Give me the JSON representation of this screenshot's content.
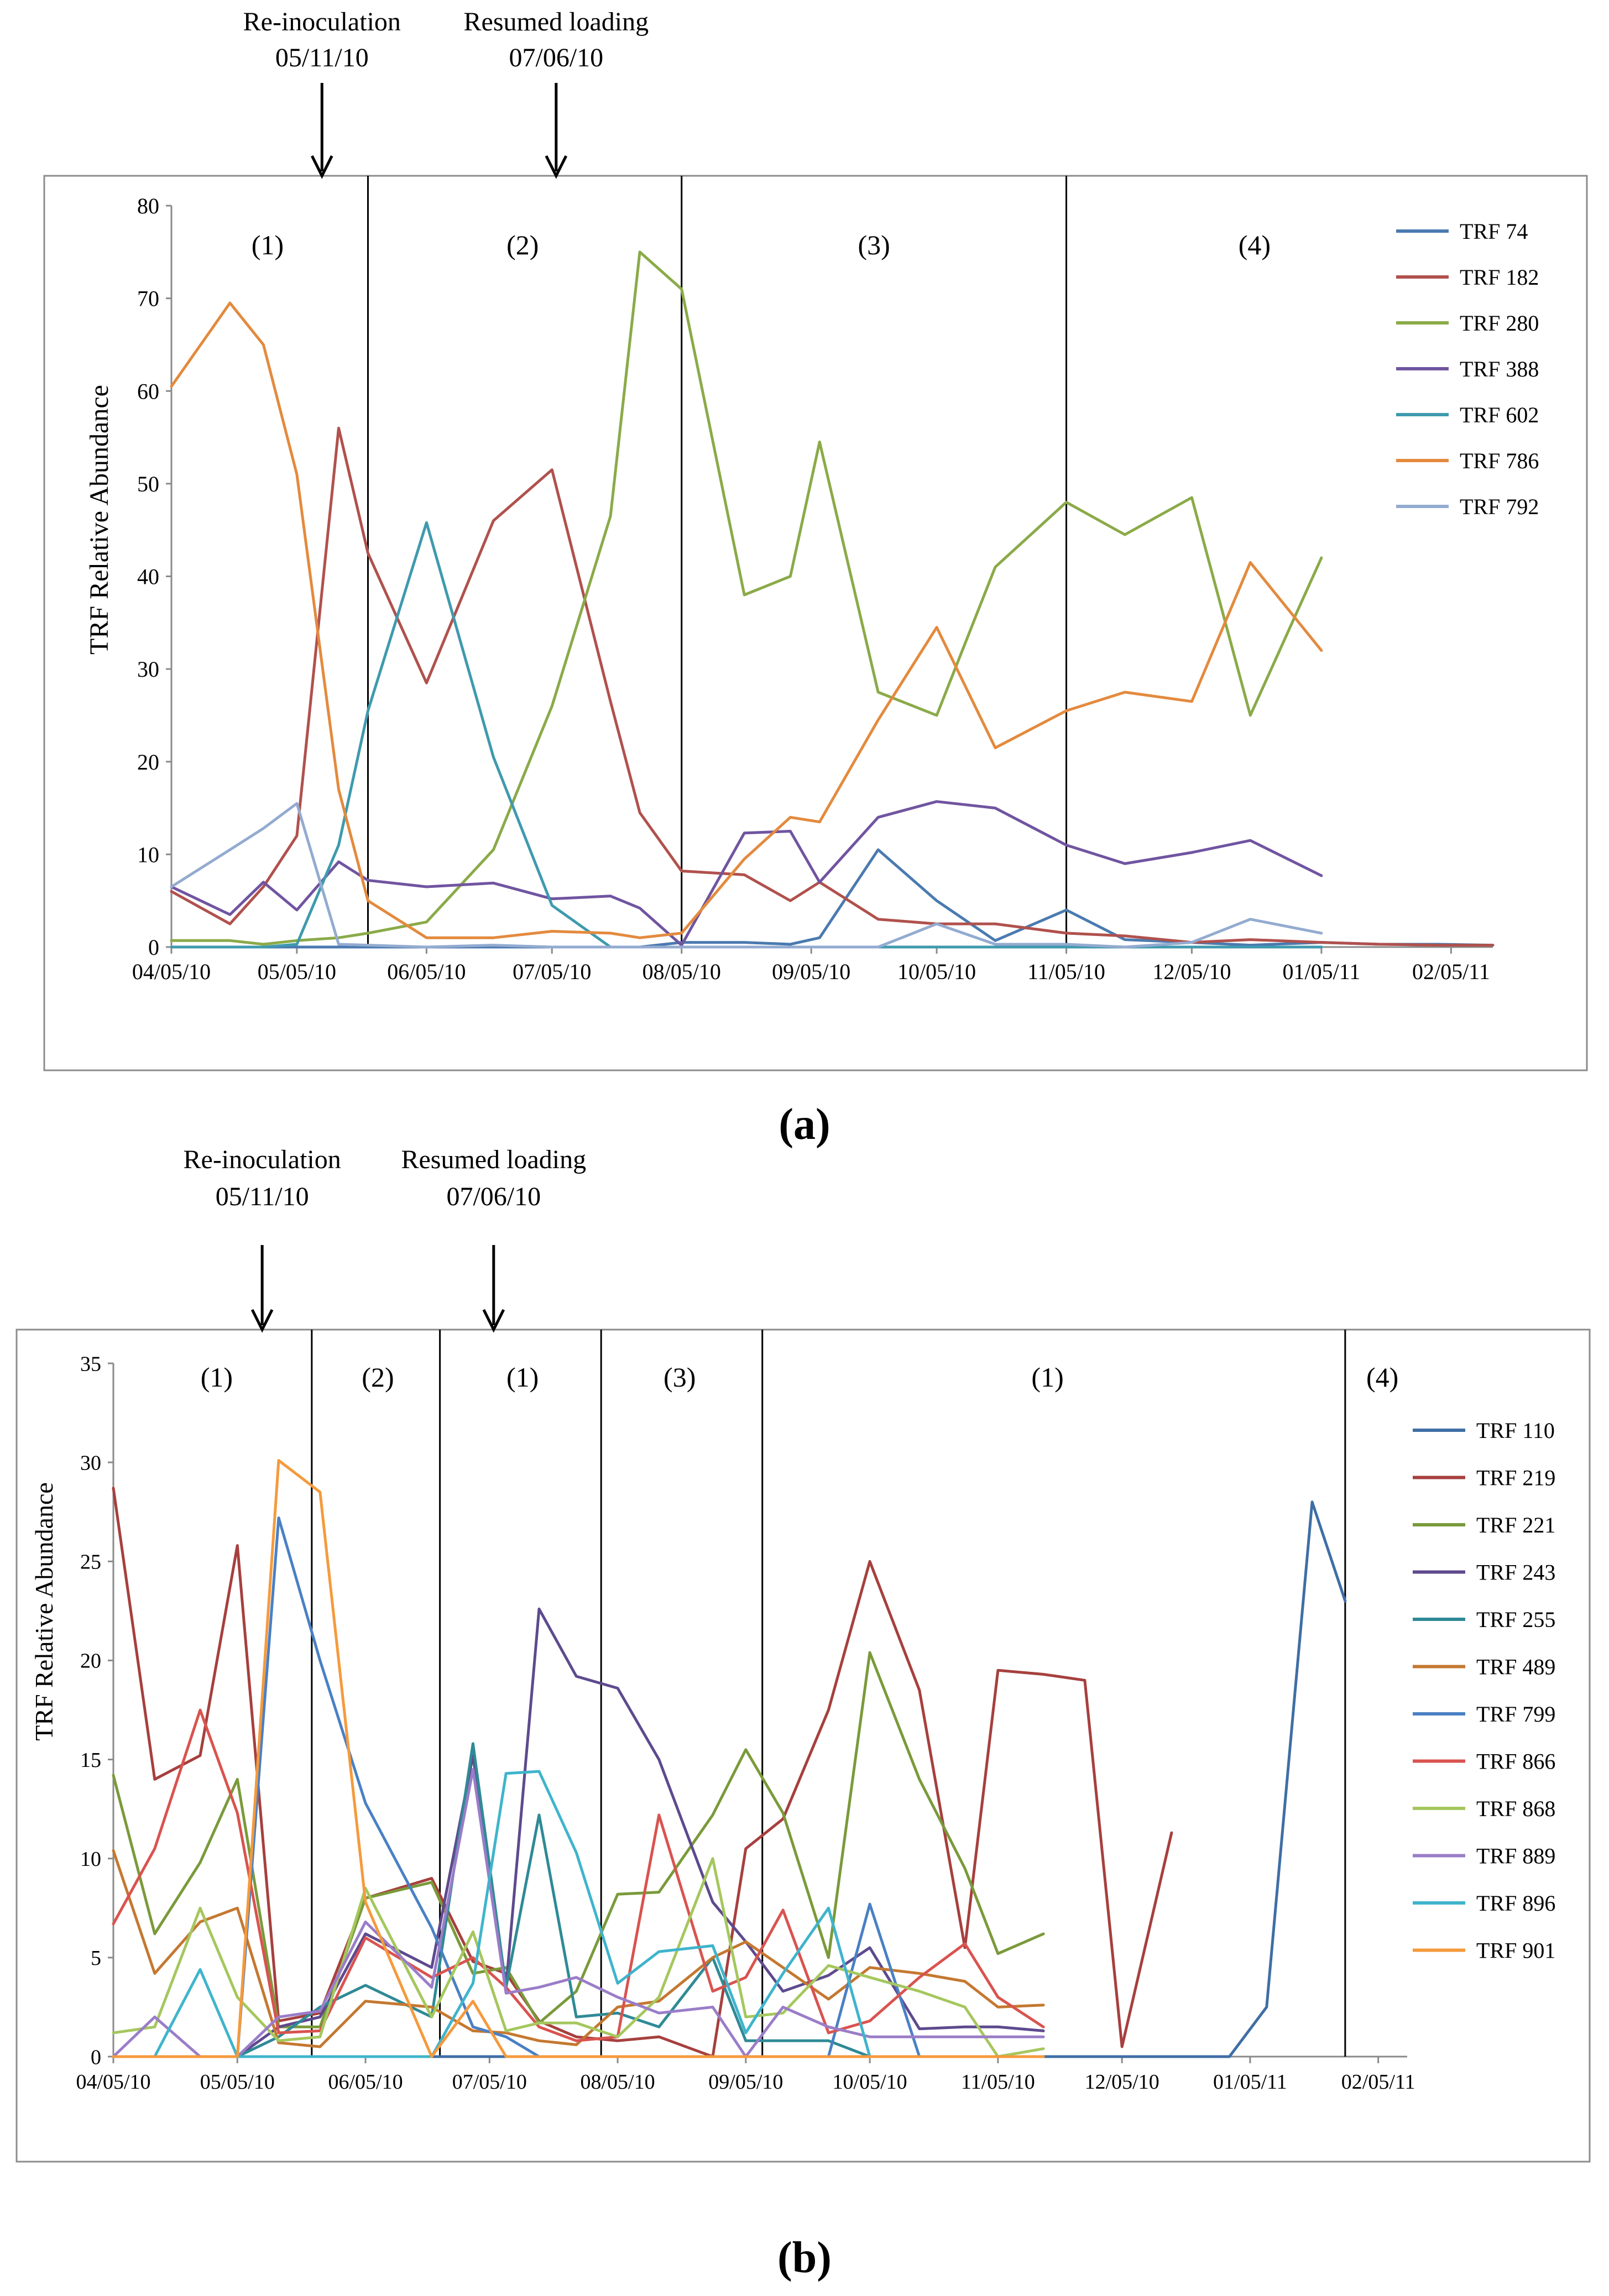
{
  "chart_data": [
    {
      "id": "a",
      "type": "line",
      "panel_label": "(a)",
      "ylabel": "TRF Relative Abundance",
      "ylim": [
        0,
        80
      ],
      "yticks": [
        0,
        10,
        20,
        30,
        40,
        50,
        60,
        70,
        80
      ],
      "xlim": [
        "2010-04-05",
        "2011-02-15"
      ],
      "xticks": [
        "2010-04-05",
        "2010-05-05",
        "2010-06-05",
        "2010-07-05",
        "2010-08-05",
        "2010-09-05",
        "2010-10-05",
        "2010-11-05",
        "2010-12-05",
        "2011-01-05",
        "2011-02-05"
      ],
      "xtick_labels": [
        "04/05/10",
        "05/05/10",
        "06/05/10",
        "07/05/10",
        "08/05/10",
        "09/05/10",
        "10/05/10",
        "11/05/10",
        "12/05/10",
        "01/05/11",
        "02/05/11"
      ],
      "dates": [
        "2010-04-05",
        "2010-04-19",
        "2010-04-27",
        "2010-05-05",
        "2010-05-15",
        "2010-05-22",
        "2010-06-05",
        "2010-06-21",
        "2010-07-05",
        "2010-07-19",
        "2010-07-26",
        "2010-08-05",
        "2010-08-20",
        "2010-08-31",
        "2010-09-07",
        "2010-09-21",
        "2010-10-05",
        "2010-10-19",
        "2010-11-05",
        "2010-11-19",
        "2010-12-05",
        "2010-12-19",
        "2011-01-05",
        "2011-01-19",
        "2011-02-02",
        "2011-02-15"
      ],
      "series": [
        {
          "name": "TRF 74",
          "color": "#4a7ab0",
          "values": [
            0,
            0,
            0,
            0,
            0,
            0,
            0,
            0,
            0,
            0,
            0,
            0.5,
            0.5,
            0.3,
            1,
            10.5,
            5,
            0.7,
            4,
            0.8,
            0.5,
            0.2,
            0.5,
            0.3,
            0.3,
            0.2
          ]
        },
        {
          "name": "TRF 182",
          "color": "#b0514d",
          "values": [
            6,
            2.5,
            6.5,
            12,
            56,
            42.5,
            28.5,
            46,
            51.5,
            26.5,
            14.5,
            8.2,
            7.8,
            5,
            7,
            3,
            2.5,
            2.5,
            1.5,
            1.2,
            0.5,
            0.8,
            0.5,
            0.3,
            0.2,
            0.2
          ]
        },
        {
          "name": "TRF 280",
          "color": "#8aaa48",
          "values": [
            0.7,
            0.7,
            0.3,
            0.7,
            1,
            1.5,
            2.7,
            10.5,
            26,
            46.5,
            75,
            71,
            38,
            40,
            54.5,
            27.5,
            25,
            41,
            48,
            44.5,
            48.5,
            25,
            42,
            null,
            null,
            null
          ]
        },
        {
          "name": "TRF 388",
          "color": "#7054a0",
          "values": [
            6.5,
            3.5,
            7,
            4,
            9.2,
            7.2,
            6.5,
            6.9,
            5.2,
            5.5,
            4.2,
            0.2,
            12.3,
            12.5,
            7,
            14,
            15.7,
            15,
            11,
            9,
            10.2,
            11.5,
            7.7,
            null,
            null,
            null
          ]
        },
        {
          "name": "TRF 602",
          "color": "#3f9aae",
          "values": [
            0,
            0,
            0,
            0.3,
            11,
            25.5,
            45.8,
            20.5,
            4.5,
            0,
            0,
            0,
            0,
            0,
            0,
            0,
            0,
            0,
            0,
            0,
            0,
            0,
            0,
            null,
            null,
            null
          ]
        },
        {
          "name": "TRF 786",
          "color": "#e38a3e",
          "values": [
            60.5,
            69.5,
            65,
            51,
            17,
            5,
            1,
            1,
            1.7,
            1.5,
            1,
            1.5,
            9.5,
            14,
            13.5,
            24.5,
            34.5,
            21.5,
            25.5,
            27.5,
            26.5,
            41.5,
            32,
            null,
            null,
            null
          ]
        },
        {
          "name": "TRF 792",
          "color": "#93abd0",
          "values": [
            6.5,
            10.5,
            12.8,
            15.5,
            0.3,
            0.2,
            0,
            0.2,
            0,
            0,
            0,
            0,
            0,
            0,
            0,
            0,
            2.5,
            0.3,
            0.3,
            0,
            0.5,
            3,
            1.5,
            null,
            null,
            null
          ]
        }
      ],
      "x_series_count": 23,
      "annotations": [
        {
          "title": "Re-inoculation",
          "date_label": "05/11/10",
          "date": "2010-05-11"
        },
        {
          "title": "Resumed loading",
          "date_label": "07/06/10",
          "date": "2010-07-06"
        }
      ],
      "phase_boundaries": [
        "2010-05-22",
        "2010-08-05",
        "2010-11-05"
      ],
      "phase_labels": [
        {
          "text": "(1)",
          "center": "2010-04-28"
        },
        {
          "text": "(2)",
          "center": "2010-06-28"
        },
        {
          "text": "(3)",
          "center": "2010-09-20"
        },
        {
          "text": "(4)",
          "center": "2010-12-20"
        }
      ]
    },
    {
      "id": "b",
      "type": "line",
      "panel_label": "(b)",
      "ylabel": "TRF Relative Abundance",
      "ylim": [
        0,
        35
      ],
      "yticks": [
        0,
        5,
        10,
        15,
        20,
        25,
        30,
        35
      ],
      "xlim": [
        "2010-04-05",
        "2011-02-12"
      ],
      "xticks": [
        "2010-04-05",
        "2010-05-05",
        "2010-06-05",
        "2010-07-05",
        "2010-08-05",
        "2010-09-05",
        "2010-10-05",
        "2010-11-05",
        "2010-12-05",
        "2011-01-05",
        "2011-02-05"
      ],
      "xtick_labels": [
        "04/05/10",
        "05/05/10",
        "06/05/10",
        "07/05/10",
        "08/05/10",
        "09/05/10",
        "10/05/10",
        "11/05/10",
        "12/05/10",
        "01/05/11",
        "02/05/11"
      ],
      "dates": [
        "2010-04-05",
        "2010-04-15",
        "2010-04-26",
        "2010-05-05",
        "2010-05-15",
        "2010-05-25",
        "2010-06-05",
        "2010-06-21",
        "2010-07-01",
        "2010-07-09",
        "2010-07-17",
        "2010-07-26",
        "2010-08-05",
        "2010-08-15",
        "2010-08-28",
        "2010-09-05",
        "2010-09-14",
        "2010-09-25",
        "2010-10-05",
        "2010-10-17",
        "2010-10-28",
        "2010-11-05",
        "2010-11-16",
        "2010-11-26",
        "2010-12-05",
        "2010-12-17",
        "2010-12-31",
        "2011-01-09",
        "2011-01-20",
        "2011-01-28",
        "2011-02-12"
      ],
      "series": [
        {
          "name": "TRF 110",
          "color": "#3f6ea5",
          "values": [
            0,
            0,
            0,
            0,
            0,
            0,
            0,
            0,
            0,
            0,
            0,
            0,
            0,
            0,
            0,
            0,
            0,
            0,
            0,
            0,
            0,
            0,
            0,
            0,
            0,
            0,
            0,
            2.5,
            28,
            23,
            null
          ]
        },
        {
          "name": "TRF 219",
          "color": "#a6403e",
          "values": [
            28.7,
            14,
            15.2,
            25.8,
            1.8,
            2.2,
            8,
            9,
            4.8,
            4.2,
            1.8,
            1,
            0.8,
            1,
            0,
            10.5,
            12,
            17.5,
            25,
            18.5,
            5.5,
            19.5,
            19.3,
            19,
            0.5,
            11.3,
            null,
            null,
            null,
            null,
            null
          ]
        },
        {
          "name": "TRF 221",
          "color": "#7a9a3a",
          "values": [
            14.2,
            6.2,
            9.8,
            14,
            1.5,
            1.5,
            8,
            8.8,
            4.2,
            4.5,
            1.7,
            3.3,
            8.2,
            8.3,
            12.2,
            15.5,
            12.3,
            5,
            20.4,
            14,
            9.5,
            5.2,
            6.2,
            null,
            null,
            null,
            null,
            null,
            null,
            null,
            null
          ]
        },
        {
          "name": "TRF 243",
          "color": "#5e4a8e",
          "values": [
            0,
            0,
            0,
            0,
            1.5,
            2,
            6.2,
            4.5,
            15.2,
            3.5,
            22.6,
            19.2,
            18.6,
            15,
            7.8,
            5.8,
            3.3,
            4.1,
            5.5,
            1.4,
            1.5,
            1.5,
            1.3,
            null,
            null,
            null,
            null,
            null,
            null,
            null,
            null
          ]
        },
        {
          "name": "TRF 255",
          "color": "#2f8a96",
          "values": [
            0,
            0,
            0,
            0,
            1,
            2.5,
            3.6,
            2,
            15.8,
            3.5,
            12.2,
            2,
            2.2,
            1.5,
            5,
            0.8,
            0.8,
            0.8,
            0,
            0,
            0,
            0,
            0,
            null,
            null,
            null,
            null,
            null,
            null,
            null,
            null
          ]
        },
        {
          "name": "TRF 489",
          "color": "#c47830",
          "values": [
            10.4,
            4.2,
            6.8,
            7.5,
            0.7,
            0.5,
            2.8,
            2.5,
            1.3,
            1.2,
            0.8,
            0.6,
            2.5,
            2.8,
            5,
            5.8,
            4.5,
            2.9,
            4.5,
            4.2,
            3.8,
            2.5,
            2.6,
            null,
            null,
            null,
            null,
            null,
            null,
            null,
            null
          ]
        },
        {
          "name": "TRF 799",
          "color": "#4a80c4",
          "values": [
            0,
            0,
            0,
            0,
            27.2,
            20,
            12.8,
            6.5,
            1.5,
            1,
            0,
            0,
            0,
            0,
            0,
            0,
            0,
            0,
            7.7,
            0,
            0,
            0,
            0,
            null,
            null,
            null,
            null,
            null,
            null,
            null,
            null
          ]
        },
        {
          "name": "TRF 866",
          "color": "#d9534f",
          "values": [
            6.7,
            10.5,
            17.5,
            12.3,
            1.2,
            1.3,
            6,
            4,
            5,
            3.5,
            1.5,
            0.8,
            1,
            12.2,
            3.3,
            4,
            7.4,
            1.2,
            1.8,
            4,
            5.7,
            3,
            1.5,
            null,
            null,
            null,
            null,
            null,
            null,
            null,
            null
          ]
        },
        {
          "name": "TRF 868",
          "color": "#a5c75e",
          "values": [
            1.2,
            1.5,
            7.5,
            3,
            0.8,
            1,
            8.5,
            2,
            6.3,
            1.3,
            1.7,
            1.7,
            1,
            3,
            10,
            2,
            2.2,
            4.6,
            4,
            3.3,
            2.5,
            0,
            0.4,
            null,
            null,
            null,
            null,
            null,
            null,
            null,
            null
          ]
        },
        {
          "name": "TRF 889",
          "color": "#9a7dc8",
          "values": [
            0,
            2,
            0,
            0,
            2,
            2.3,
            6.8,
            3.5,
            14.5,
            3.2,
            3.5,
            4,
            3,
            2.2,
            2.5,
            0,
            2.5,
            1.5,
            1,
            1,
            1,
            1,
            1,
            null,
            null,
            null,
            null,
            null,
            null,
            null,
            null
          ]
        },
        {
          "name": "TRF 896",
          "color": "#3fb4cc",
          "values": [
            0,
            0,
            4.4,
            0,
            0,
            0,
            0,
            0,
            3.7,
            14.3,
            14.4,
            10.3,
            3.7,
            5.3,
            5.6,
            1.2,
            4.2,
            7.5,
            0,
            0,
            0,
            0,
            0,
            null,
            null,
            null,
            null,
            null,
            null,
            null,
            null
          ]
        },
        {
          "name": "TRF 901",
          "color": "#f59a3c",
          "values": [
            0,
            0,
            0,
            0,
            30.1,
            28.5,
            7.8,
            0,
            2.8,
            0,
            0,
            0,
            0,
            0,
            0,
            0,
            0,
            0,
            0,
            0,
            0,
            0,
            0,
            null,
            null,
            null,
            null,
            null,
            null,
            null,
            null
          ]
        }
      ],
      "annotations": [
        {
          "title": "Re-inoculation",
          "date_label": "05/11/10",
          "date": "2010-05-11"
        },
        {
          "title": "Resumed loading",
          "date_label": "07/06/10",
          "date": "2010-07-06"
        }
      ],
      "phase_boundaries": [
        "2010-05-23",
        "2010-06-23",
        "2010-08-01",
        "2010-09-09",
        "2011-01-28"
      ],
      "phase_labels": [
        {
          "text": "(1)",
          "center": "2010-04-30"
        },
        {
          "text": "(2)",
          "center": "2010-06-08"
        },
        {
          "text": "(1)",
          "center": "2010-07-13"
        },
        {
          "text": "(3)",
          "center": "2010-08-20"
        },
        {
          "text": "(1)",
          "center": "2010-11-17"
        },
        {
          "text": "(4)",
          "center": "2011-02-06"
        }
      ]
    }
  ]
}
